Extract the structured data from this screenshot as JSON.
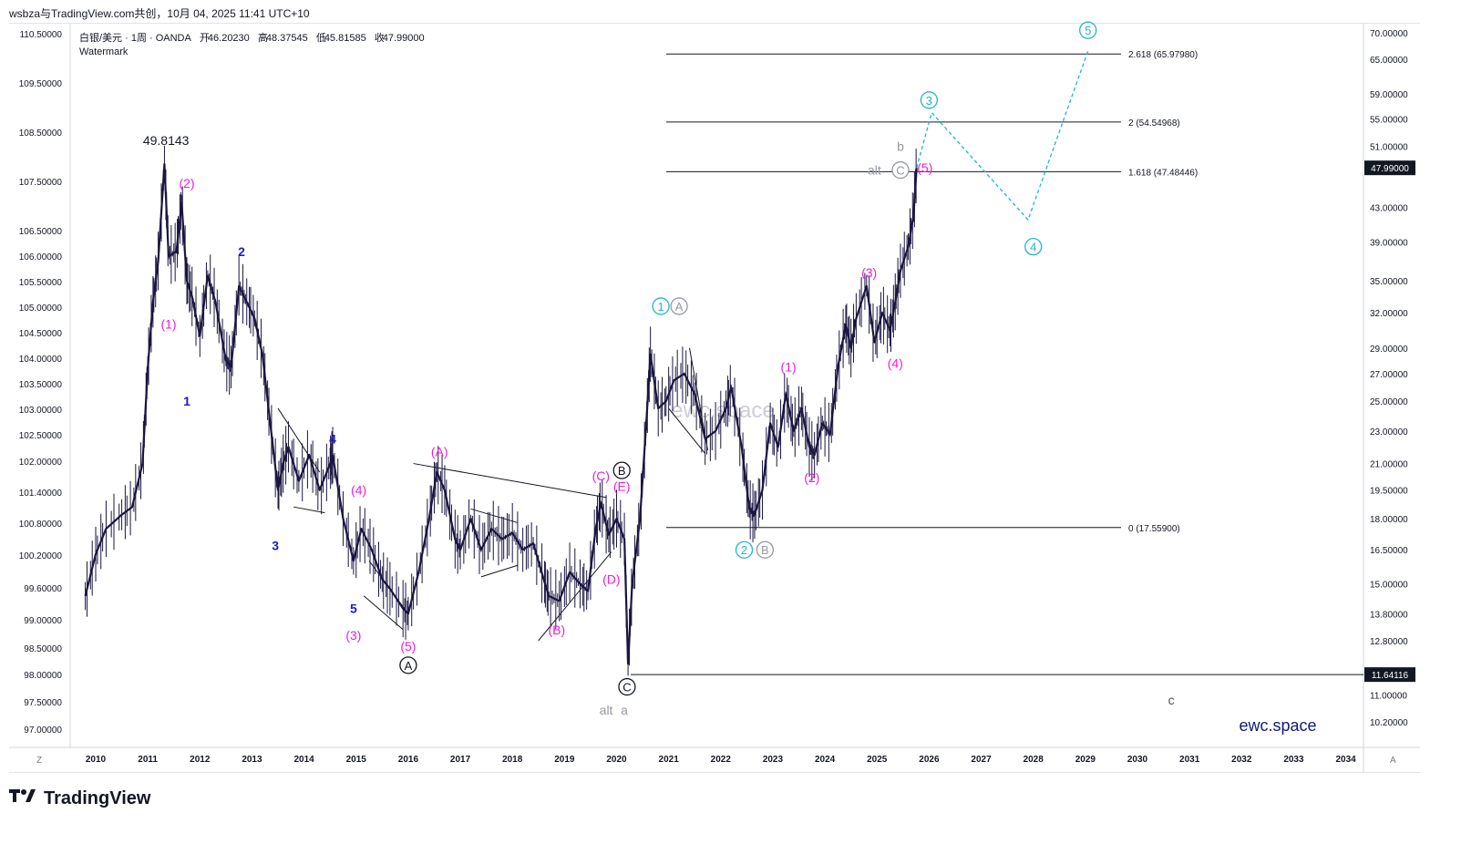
{
  "header": {
    "share_line": "wsbza与TradingView.com共创，10月 04, 2025 11:41 UTC+10",
    "symbol": "白银/美元 · 1周 · OANDA",
    "open_label": "开",
    "open_value": "46.20230",
    "high_label": "高",
    "high_value": "48.37545",
    "low_label": "低",
    "low_value": "45.81585",
    "close_label": "收",
    "close_value": "47.99000",
    "watermark_label": "Watermark"
  },
  "footer": {
    "brand": "TradingView",
    "left_corner": "Z",
    "right_corner": "A"
  },
  "chart_data": {
    "type": "line",
    "title": "白银/美元 · 1周 · OANDA",
    "left_axis_ticks": [
      "110.50000",
      "109.50000",
      "108.50000",
      "107.50000",
      "106.50000",
      "106.00000",
      "105.50000",
      "105.00000",
      "104.50000",
      "104.00000",
      "103.50000",
      "103.00000",
      "102.50000",
      "102.00000",
      "101.40000",
      "100.80000",
      "100.20000",
      "99.60000",
      "99.00000",
      "98.50000",
      "98.00000",
      "97.50000",
      "97.00000"
    ],
    "right_axis_ticks": [
      "70.00000",
      "65.00000",
      "59.00000",
      "55.00000",
      "51.00000",
      "43.00000",
      "39.00000",
      "35.00000",
      "32.00000",
      "29.00000",
      "27.00000",
      "25.00000",
      "23.00000",
      "21.00000",
      "19.50000",
      "18.00000",
      "16.50000",
      "15.00000",
      "13.80000",
      "12.80000",
      "11.00000",
      "10.20000"
    ],
    "x_ticks": [
      "2010",
      "2011",
      "2012",
      "2013",
      "2014",
      "2015",
      "2016",
      "2017",
      "2018",
      "2019",
      "2020",
      "2021",
      "2022",
      "2023",
      "2024",
      "2025",
      "2026",
      "2027",
      "2028",
      "2029",
      "2030",
      "2031",
      "2032",
      "2033",
      "2034"
    ],
    "y_scale": "log",
    "price_badge": "47.99000",
    "low_badge": "11.64116",
    "price_series": {
      "name": "XAG/USD weekly",
      "points": [
        [
          2009.8,
          14.5
        ],
        [
          2010.0,
          16.3
        ],
        [
          2010.2,
          17.5
        ],
        [
          2010.5,
          18.2
        ],
        [
          2010.7,
          18.6
        ],
        [
          2010.9,
          21.0
        ],
        [
          2011.0,
          27.5
        ],
        [
          2011.1,
          33.0
        ],
        [
          2011.2,
          37.0
        ],
        [
          2011.32,
          48.5
        ],
        [
          2011.4,
          37.5
        ],
        [
          2011.55,
          38.0
        ],
        [
          2011.65,
          43.5
        ],
        [
          2011.75,
          35.0
        ],
        [
          2011.85,
          33.5
        ],
        [
          2012.0,
          30.0
        ],
        [
          2012.15,
          35.5
        ],
        [
          2012.3,
          33.0
        ],
        [
          2012.5,
          28.0
        ],
        [
          2012.6,
          27.5
        ],
        [
          2012.75,
          34.5
        ],
        [
          2012.9,
          33.0
        ],
        [
          2013.05,
          31.5
        ],
        [
          2013.2,
          28.5
        ],
        [
          2013.35,
          23.5
        ],
        [
          2013.5,
          19.5
        ],
        [
          2013.6,
          21.0
        ],
        [
          2013.7,
          22.0
        ],
        [
          2013.9,
          20.0
        ],
        [
          2014.1,
          21.5
        ],
        [
          2014.3,
          19.5
        ],
        [
          2014.5,
          21.0
        ],
        [
          2014.55,
          21.5
        ],
        [
          2014.75,
          18.0
        ],
        [
          2014.95,
          16.0
        ],
        [
          2015.1,
          17.5
        ],
        [
          2015.3,
          16.5
        ],
        [
          2015.5,
          15.2
        ],
        [
          2015.65,
          14.8
        ],
        [
          2015.9,
          14.0
        ],
        [
          2016.0,
          13.8
        ],
        [
          2016.2,
          15.5
        ],
        [
          2016.4,
          18.0
        ],
        [
          2016.55,
          20.5
        ],
        [
          2016.7,
          19.5
        ],
        [
          2016.9,
          17.0
        ],
        [
          2017.0,
          16.5
        ],
        [
          2017.2,
          18.0
        ],
        [
          2017.4,
          16.5
        ],
        [
          2017.6,
          17.5
        ],
        [
          2017.8,
          17.0
        ],
        [
          2018.0,
          17.3
        ],
        [
          2018.2,
          16.5
        ],
        [
          2018.4,
          16.8
        ],
        [
          2018.6,
          15.2
        ],
        [
          2018.7,
          14.5
        ],
        [
          2018.9,
          14.3
        ],
        [
          2019.1,
          15.5
        ],
        [
          2019.3,
          15.0
        ],
        [
          2019.45,
          14.7
        ],
        [
          2019.6,
          17.5
        ],
        [
          2019.7,
          18.8
        ],
        [
          2019.85,
          17.2
        ],
        [
          2020.0,
          18.0
        ],
        [
          2020.15,
          17.0
        ],
        [
          2020.22,
          12.0
        ],
        [
          2020.3,
          15.0
        ],
        [
          2020.45,
          18.0
        ],
        [
          2020.58,
          24.0
        ],
        [
          2020.65,
          28.5
        ],
        [
          2020.8,
          24.5
        ],
        [
          2020.95,
          25.0
        ],
        [
          2021.1,
          26.5
        ],
        [
          2021.3,
          27.0
        ],
        [
          2021.5,
          25.5
        ],
        [
          2021.7,
          22.5
        ],
        [
          2021.9,
          23.0
        ],
        [
          2022.1,
          24.5
        ],
        [
          2022.2,
          26.0
        ],
        [
          2022.4,
          22.0
        ],
        [
          2022.55,
          18.5
        ],
        [
          2022.65,
          18.2
        ],
        [
          2022.8,
          19.5
        ],
        [
          2022.95,
          23.5
        ],
        [
          2023.1,
          22.0
        ],
        [
          2023.25,
          25.5
        ],
        [
          2023.4,
          23.0
        ],
        [
          2023.55,
          24.5
        ],
        [
          2023.7,
          22.0
        ],
        [
          2023.8,
          21.5
        ],
        [
          2023.95,
          23.5
        ],
        [
          2024.1,
          22.8
        ],
        [
          2024.25,
          27.5
        ],
        [
          2024.4,
          31.0
        ],
        [
          2024.5,
          29.0
        ],
        [
          2024.6,
          31.5
        ],
        [
          2024.8,
          34.5
        ],
        [
          2024.95,
          29.5
        ],
        [
          2025.1,
          32.0
        ],
        [
          2025.25,
          30.5
        ],
        [
          2025.35,
          33.0
        ],
        [
          2025.45,
          36.0
        ],
        [
          2025.6,
          38.5
        ],
        [
          2025.7,
          42.0
        ],
        [
          2025.76,
          47.99
        ]
      ]
    },
    "fib_levels": [
      {
        "label": "2.618 (65.97980)",
        "value": 65.9798
      },
      {
        "label": "2 (54.54968)",
        "value": 54.54968
      },
      {
        "label": "1.618 (47.48446)",
        "value": 47.48446
      },
      {
        "label": "0 (17.55900)",
        "value": 17.559
      }
    ],
    "horizontal_low": 11.64116,
    "projection": [
      [
        2025.76,
        47.99
      ],
      [
        2026.05,
        56.0
      ],
      [
        2027.9,
        41.5
      ],
      [
        2029.05,
        66.5
      ]
    ],
    "wave_labels": [
      {
        "text": "49.8143",
        "color": "#131722",
        "x": 2011.35,
        "y": 51.8,
        "circle": false
      },
      {
        "text": "(2)",
        "color": "#e91ee0",
        "x": 2011.75,
        "y": 46.0,
        "circle": false
      },
      {
        "text": "(1)",
        "color": "#e91ee0",
        "x": 2011.4,
        "y": 31.0,
        "circle": false
      },
      {
        "text": "1",
        "color": "#1a1acc",
        "x": 2011.75,
        "y": 25.0,
        "circle": false
      },
      {
        "text": "2",
        "color": "#1a1acc",
        "x": 2012.8,
        "y": 38.0,
        "circle": false
      },
      {
        "text": "3",
        "color": "#1a1acc",
        "x": 2013.45,
        "y": 16.7,
        "circle": false
      },
      {
        "text": "4",
        "color": "#1a1acc",
        "x": 2014.55,
        "y": 22.5,
        "circle": false
      },
      {
        "text": "(4)",
        "color": "#e91ee0",
        "x": 2015.05,
        "y": 19.5,
        "circle": false
      },
      {
        "text": "5",
        "color": "#1a1acc",
        "x": 2014.95,
        "y": 14.0,
        "circle": false
      },
      {
        "text": "(3)",
        "color": "#e91ee0",
        "x": 2014.95,
        "y": 13.0,
        "circle": false
      },
      {
        "text": "(5)",
        "color": "#e91ee0",
        "x": 2016.0,
        "y": 12.6,
        "circle": false
      },
      {
        "text": "A",
        "color": "#131722",
        "x": 2016.0,
        "y": 11.95,
        "circle": true,
        "fill": "#131722"
      },
      {
        "text": "(A)",
        "color": "#e91ee0",
        "x": 2016.6,
        "y": 21.7,
        "circle": false
      },
      {
        "text": "(C)",
        "color": "#e91ee0",
        "x": 2019.7,
        "y": 20.3,
        "circle": false
      },
      {
        "text": "B",
        "color": "#131722",
        "x": 2020.1,
        "y": 20.6,
        "circle": true,
        "fill": "#131722"
      },
      {
        "text": "(E)",
        "color": "#e91ee0",
        "x": 2020.1,
        "y": 19.7,
        "circle": false
      },
      {
        "text": "(D)",
        "color": "#e91ee0",
        "x": 2019.9,
        "y": 15.2,
        "circle": false
      },
      {
        "text": "(B)",
        "color": "#e91ee0",
        "x": 2018.85,
        "y": 13.2,
        "circle": false
      },
      {
        "text": "C",
        "color": "#131722",
        "x": 2020.2,
        "y": 11.25,
        "circle": true,
        "fill": "#131722"
      },
      {
        "text": "alt",
        "color": "#9598a1",
        "x": 2019.8,
        "y": 10.55,
        "circle": false
      },
      {
        "text": "a",
        "color": "#9598a1",
        "x": 2020.15,
        "y": 10.55,
        "circle": false
      },
      {
        "text": "1",
        "color": "#22b5c8",
        "x": 2020.85,
        "y": 32.6,
        "circle": true,
        "fill": "#22b5c8"
      },
      {
        "text": "A",
        "color": "#9598a1",
        "x": 2021.2,
        "y": 32.6,
        "circle": true,
        "fill": "#9598a1"
      },
      {
        "text": "2",
        "color": "#22b5c8",
        "x": 2022.45,
        "y": 16.5,
        "circle": true,
        "fill": "#22b5c8"
      },
      {
        "text": "B",
        "color": "#9598a1",
        "x": 2022.85,
        "y": 16.5,
        "circle": true,
        "fill": "#9598a1"
      },
      {
        "text": "(1)",
        "color": "#e91ee0",
        "x": 2023.3,
        "y": 27.5,
        "circle": false
      },
      {
        "text": "(2)",
        "color": "#e91ee0",
        "x": 2023.75,
        "y": 20.2,
        "circle": false
      },
      {
        "text": "(3)",
        "color": "#e91ee0",
        "x": 2024.85,
        "y": 35.8,
        "circle": false
      },
      {
        "text": "(4)",
        "color": "#e91ee0",
        "x": 2025.35,
        "y": 27.8,
        "circle": false
      },
      {
        "text": "alt",
        "color": "#9598a1",
        "x": 2024.95,
        "y": 47.7,
        "circle": false
      },
      {
        "text": "C",
        "color": "#9598a1",
        "x": 2025.45,
        "y": 47.7,
        "circle": true,
        "fill": "#9598a1"
      },
      {
        "text": "b",
        "color": "#9598a1",
        "x": 2025.45,
        "y": 51.0,
        "circle": false
      },
      {
        "text": "(5)",
        "color": "#e91ee0",
        "x": 2025.92,
        "y": 48.0,
        "circle": false
      },
      {
        "text": "3",
        "color": "#22b5c8",
        "x": 2026.0,
        "y": 58.0,
        "circle": true,
        "fill": "#22b5c8"
      },
      {
        "text": "4",
        "color": "#22b5c8",
        "x": 2028.0,
        "y": 38.5,
        "circle": true,
        "fill": "#22b5c8"
      },
      {
        "text": "5",
        "color": "#22b5c8",
        "x": 2029.05,
        "y": 70.5,
        "circle": true,
        "fill": "#22b5c8"
      },
      {
        "text": "c",
        "color": "#505050",
        "x": 2030.65,
        "y": 10.85,
        "circle": false
      }
    ],
    "watermark_text": "ewc.space",
    "watermark_text_faded": "ewc.space",
    "colors": {
      "price": "#1a1640",
      "magenta": "#e91ee0",
      "blue": "#1a1acc",
      "teal": "#22b5c8",
      "grey": "#9598a1",
      "watermark": "#0d1a7a"
    }
  }
}
